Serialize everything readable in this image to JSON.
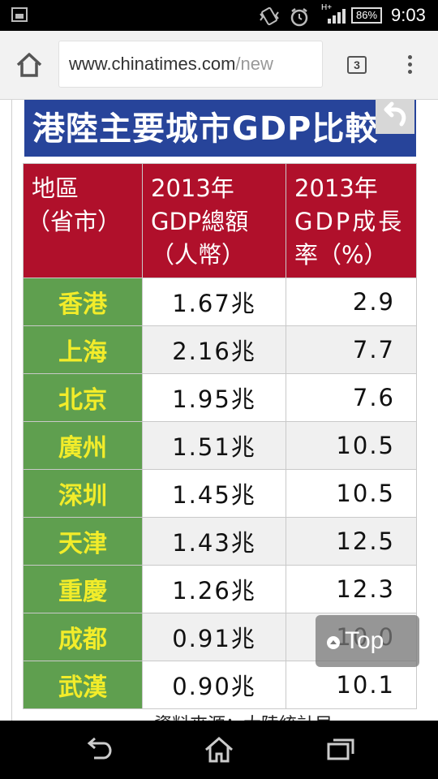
{
  "status_bar": {
    "battery": "86%",
    "time": "9:03",
    "network": "H+",
    "icons": [
      "image-icon",
      "vibrate-icon",
      "alarm-icon",
      "signal-icon",
      "battery-icon"
    ]
  },
  "browser": {
    "url_main": "www.chinatimes.com",
    "url_faded": "/new",
    "tab_count": "3",
    "icons": [
      "home-icon",
      "tabs-icon",
      "overflow-menu-icon"
    ]
  },
  "article": {
    "title": "港陸主要城市GDP比較",
    "table": {
      "headers": {
        "region": [
          "地區",
          "（省市）"
        ],
        "total": [
          "2013年",
          "GDP總額",
          "（人幣）"
        ],
        "growth": [
          "2013年",
          "GDP成長",
          "率（%）"
        ]
      },
      "rows": [
        {
          "city": "香港",
          "gdp": "1.67兆",
          "rate": "2.9"
        },
        {
          "city": "上海",
          "gdp": "2.16兆",
          "rate": "7.7"
        },
        {
          "city": "北京",
          "gdp": "1.95兆",
          "rate": "7.6"
        },
        {
          "city": "廣州",
          "gdp": "1.51兆",
          "rate": "10.5"
        },
        {
          "city": "深圳",
          "gdp": "1.45兆",
          "rate": "10.5"
        },
        {
          "city": "天津",
          "gdp": "1.43兆",
          "rate": "12.5"
        },
        {
          "city": "重慶",
          "gdp": "1.26兆",
          "rate": "12.3"
        },
        {
          "city": "成都",
          "gdp": "0.91兆",
          "rate": "10.0"
        },
        {
          "city": "武漢",
          "gdp": "0.90兆",
          "rate": "10.1"
        }
      ]
    },
    "source": "資料來源：大陸統計局"
  },
  "overlay": {
    "top_button": "Top"
  },
  "colors": {
    "title_bar": "#27449a",
    "header_red": "#b0102b",
    "city_green": "#5f9f4f",
    "city_text": "#f2ec2a"
  }
}
